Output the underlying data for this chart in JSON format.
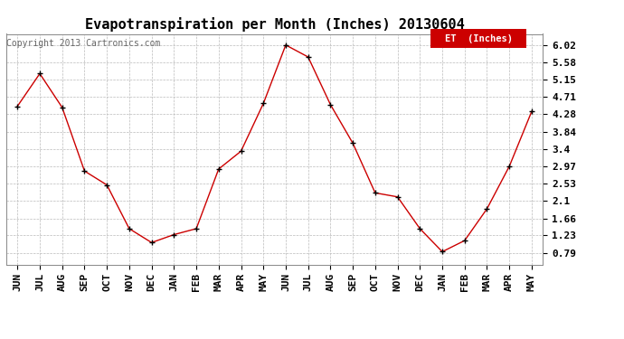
{
  "title": "Evapotranspiration per Month (Inches) 20130604",
  "copyright": "Copyright 2013 Cartronics.com",
  "legend_label": "ET  (Inches)",
  "legend_bg": "#cc0000",
  "line_color": "#cc0000",
  "marker_color": "#000000",
  "bg_color": "#ffffff",
  "grid_color": "#bbbbbb",
  "months": [
    "JUN",
    "JUL",
    "AUG",
    "SEP",
    "OCT",
    "NOV",
    "DEC",
    "JAN",
    "FEB",
    "MAR",
    "APR",
    "MAY",
    "JUN",
    "JUL",
    "AUG",
    "SEP",
    "OCT",
    "NOV",
    "DEC",
    "JAN",
    "FEB",
    "MAR",
    "APR",
    "MAY"
  ],
  "values": [
    4.48,
    5.3,
    4.45,
    2.85,
    2.5,
    1.4,
    1.05,
    1.25,
    1.4,
    2.9,
    3.35,
    4.55,
    6.02,
    5.72,
    4.52,
    3.55,
    2.3,
    2.2,
    1.4,
    0.82,
    1.1,
    1.9,
    2.97,
    4.35
  ],
  "yticks": [
    0.79,
    1.23,
    1.66,
    2.1,
    2.53,
    2.97,
    3.4,
    3.84,
    4.28,
    4.71,
    5.15,
    5.58,
    6.02
  ],
  "ylim": [
    0.5,
    6.3
  ],
  "title_fontsize": 11,
  "tick_fontsize": 8,
  "copyright_fontsize": 7
}
